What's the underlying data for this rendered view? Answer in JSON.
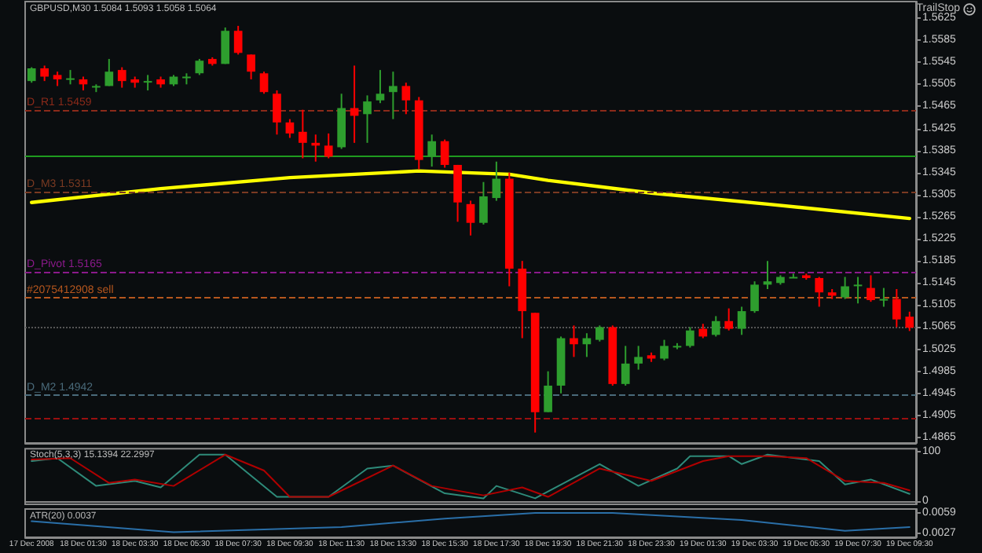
{
  "chart_data": [
    {
      "type": "candlestick",
      "title": "GBPUSD,M30 1.5084 1.5093 1.5058 1.5064",
      "categories": [
        null,
        null,
        null,
        null,
        null,
        null,
        null,
        null,
        null,
        null,
        null,
        null,
        null,
        null,
        null,
        null,
        null,
        null,
        null,
        null,
        null,
        null,
        null,
        null,
        null,
        null,
        null,
        null,
        null,
        null,
        null,
        null,
        null,
        null,
        null,
        null,
        null,
        null,
        null,
        null,
        null,
        null,
        null,
        null,
        null,
        null,
        null,
        null,
        null,
        null,
        null,
        null,
        null,
        null,
        null,
        null,
        null,
        null,
        null,
        null,
        null,
        null,
        null,
        null,
        null,
        null,
        null,
        null,
        null
      ],
      "ohlc": [
        [
          1.5511,
          1.5536,
          1.5508,
          1.5534
        ],
        [
          1.5534,
          1.5539,
          1.5511,
          1.5519
        ],
        [
          1.5522,
          1.5528,
          1.5502,
          1.5514
        ],
        [
          1.5516,
          1.5531,
          1.5505,
          1.5516
        ],
        [
          1.5514,
          1.5519,
          1.5494,
          1.5505
        ],
        [
          1.5502,
          1.5505,
          1.5491,
          1.5502
        ],
        [
          1.5502,
          1.5551,
          1.5502,
          1.5528
        ],
        [
          1.5531,
          1.5536,
          1.5499,
          1.5511
        ],
        [
          1.5514,
          1.5519,
          1.5499,
          1.5508
        ],
        [
          1.5511,
          1.5522,
          1.5494,
          1.5511
        ],
        [
          1.5514,
          1.5519,
          1.5499,
          1.5505
        ],
        [
          1.5505,
          1.5522,
          1.5502,
          1.5519
        ],
        [
          1.5519,
          1.5525,
          1.5505,
          1.5519
        ],
        [
          1.5525,
          1.5551,
          1.5522,
          1.5548
        ],
        [
          1.5551,
          1.5554,
          1.5539,
          1.5542
        ],
        [
          1.5542,
          1.5608,
          1.5542,
          1.5602
        ],
        [
          1.5602,
          1.5611,
          1.5559,
          1.5562
        ],
        [
          1.5559,
          1.5559,
          1.5514,
          1.5528
        ],
        [
          1.5525,
          1.5528,
          1.5488,
          1.5491
        ],
        [
          1.5488,
          1.5494,
          1.5414,
          1.5436
        ],
        [
          1.5436,
          1.5442,
          1.5408,
          1.5416
        ],
        [
          1.5419,
          1.5459,
          1.5371,
          1.5399
        ],
        [
          1.5399,
          1.5414,
          1.5365,
          1.5394
        ],
        [
          1.5394,
          1.5416,
          1.5371,
          1.5374
        ],
        [
          1.5391,
          1.5488,
          1.5388,
          1.5462
        ],
        [
          1.5462,
          1.5539,
          1.5399,
          1.5448
        ],
        [
          1.5451,
          1.5485,
          1.5399,
          1.5474
        ],
        [
          1.5476,
          1.5531,
          1.5471,
          1.5488
        ],
        [
          1.5491,
          1.5528,
          1.5442,
          1.5502
        ],
        [
          1.5502,
          1.5508,
          1.5451,
          1.5476
        ],
        [
          1.5476,
          1.5482,
          1.5351,
          1.5368
        ],
        [
          1.5374,
          1.5414,
          1.5356,
          1.5402
        ],
        [
          1.5402,
          1.5405,
          1.5354,
          1.5359
        ],
        [
          1.5359,
          1.5359,
          1.5256,
          1.5291
        ],
        [
          1.5288,
          1.5294,
          1.5231,
          1.5254
        ],
        [
          1.5254,
          1.5328,
          1.5251,
          1.5302
        ],
        [
          1.5299,
          1.5365,
          1.5294,
          1.5334
        ],
        [
          1.5334,
          1.5345,
          1.5139,
          1.5171
        ],
        [
          1.5171,
          1.5185,
          1.5045,
          1.5094
        ],
        [
          1.5091,
          1.5091,
          1.4874,
          1.4911
        ],
        [
          1.4911,
          1.4985,
          1.4911,
          1.4959
        ],
        [
          1.4959,
          1.5048,
          1.4945,
          1.5045
        ],
        [
          1.5045,
          1.5068,
          1.5011,
          1.5034
        ],
        [
          1.5034,
          1.5054,
          1.5011,
          1.5045
        ],
        [
          1.5042,
          1.5068,
          1.5039,
          1.5065
        ],
        [
          1.5065,
          1.5068,
          1.4959,
          1.4962
        ],
        [
          1.4962,
          1.5031,
          1.4959,
          1.4999
        ],
        [
          1.4999,
          1.5031,
          1.4988,
          1.5011
        ],
        [
          1.5014,
          1.5019,
          1.5002,
          1.5008
        ],
        [
          1.5008,
          1.5042,
          1.5005,
          1.5031
        ],
        [
          1.5031,
          1.5036,
          1.5025,
          1.5031
        ],
        [
          1.5031,
          1.5065,
          1.5028,
          1.5059
        ],
        [
          1.5062,
          1.5071,
          1.5045,
          1.5048
        ],
        [
          1.5051,
          1.5085,
          1.5048,
          1.5076
        ],
        [
          1.5076,
          1.5099,
          1.5059,
          1.5062
        ],
        [
          1.5062,
          1.5102,
          1.5051,
          1.5094
        ],
        [
          1.5094,
          1.5148,
          1.5091,
          1.5142
        ],
        [
          1.5142,
          1.5185,
          1.5134,
          1.5148
        ],
        [
          1.5145,
          1.5159,
          1.5142,
          1.5156
        ],
        [
          1.5156,
          1.5162,
          1.5154,
          1.5156
        ],
        [
          1.5159,
          1.5162,
          1.5151,
          1.5154
        ],
        [
          1.5154,
          1.5156,
          1.5102,
          1.5128
        ],
        [
          1.5128,
          1.5134,
          1.5116,
          1.5122
        ],
        [
          1.5119,
          1.5156,
          1.5116,
          1.5139
        ],
        [
          1.5142,
          1.5156,
          1.5108,
          1.5142
        ],
        [
          1.5136,
          1.5159,
          1.5111,
          1.5114
        ],
        [
          1.5116,
          1.5136,
          1.5102,
          1.5116
        ],
        [
          1.5116,
          1.5134,
          1.5065,
          1.5079
        ],
        [
          1.5084,
          1.5093,
          1.5058,
          1.5064
        ]
      ],
      "colors": [
        "#2e9e2e",
        "#ff0000",
        "#ff0000",
        "#2e9e2e",
        "#ff0000",
        "#2e9e2e",
        "#2e9e2e",
        "#ff0000",
        "#ff0000",
        "#2e9e2e",
        "#ff0000",
        "#2e9e2e",
        "#2e9e2e",
        "#2e9e2e",
        "#ff0000",
        "#2e9e2e",
        "#ff0000",
        "#ff0000",
        "#ff0000",
        "#ff0000",
        "#ff0000",
        "#ff0000",
        "#ff0000",
        "#ff0000",
        "#2e9e2e",
        "#ff0000",
        "#2e9e2e",
        "#2e9e2e",
        "#2e9e2e",
        "#ff0000",
        "#ff0000",
        "#2e9e2e",
        "#ff0000",
        "#ff0000",
        "#ff0000",
        "#2e9e2e",
        "#2e9e2e",
        "#ff0000",
        "#ff0000",
        "#ff0000",
        "#2e9e2e",
        "#2e9e2e",
        "#ff0000",
        "#2e9e2e",
        "#2e9e2e",
        "#ff0000",
        "#2e9e2e",
        "#2e9e2e",
        "#ff0000",
        "#2e9e2e",
        "#2e9e2e",
        "#2e9e2e",
        "#ff0000",
        "#2e9e2e",
        "#ff0000",
        "#2e9e2e",
        "#2e9e2e",
        "#2e9e2e",
        "#2e9e2e",
        "#2e9e2e",
        "#ff0000",
        "#ff0000",
        "#ff0000",
        "#2e9e2e",
        "#2e9e2e",
        "#ff0000",
        "#2e9e2e",
        "#ff0000",
        "#ff0000"
      ],
      "series": [
        {
          "type": "line",
          "color": "#ffff00",
          "values": [
            1.5291,
            null,
            null,
            null,
            null,
            null,
            null,
            null,
            null,
            null,
            1.5316,
            null,
            null,
            null,
            null,
            null,
            null,
            null,
            null,
            null,
            1.5336,
            null,
            null,
            null,
            null,
            null,
            null,
            null,
            null,
            null,
            1.5348,
            null,
            null,
            null,
            null,
            null,
            null,
            1.5342,
            null,
            null,
            1.5331,
            null,
            null,
            null,
            null,
            null,
            null,
            null,
            1.5308,
            null,
            null,
            null,
            null,
            null,
            null,
            null,
            null,
            1.5288,
            null,
            null,
            null,
            null,
            null,
            null,
            null,
            null,
            null,
            null,
            1.5262
          ]
        }
      ],
      "ylim": [
        1.4855,
        1.5655
      ],
      "yticks": [
        1.4865,
        1.4905,
        1.4945,
        1.4985,
        1.5025,
        1.5065,
        1.5105,
        1.5145,
        1.5185,
        1.5225,
        1.5265,
        1.5305,
        1.5345,
        1.5385,
        1.5425,
        1.5465,
        1.5505,
        1.5545,
        1.5585,
        1.5625
      ],
      "ref_lines": [
        {
          "axis": "y",
          "value": 1.5459,
          "label": "D_R1 1.5459",
          "color": "#8b2a1a",
          "line_style": "dashed"
        },
        {
          "axis": "y",
          "value": 1.5376,
          "color": "#1f9a1f",
          "line_style": "solid"
        },
        {
          "axis": "y",
          "value": 1.5311,
          "label": "D_M3 1.5311",
          "color": "#7a3a22",
          "line_style": "dashed"
        },
        {
          "axis": "y",
          "value": 1.5165,
          "label": "D_Pivot 1.5165",
          "color": "#8b1a8b",
          "line_style": "dashed"
        },
        {
          "axis": "y",
          "value": 1.5119,
          "label": "#2075412908 sell",
          "color": "#b5561e",
          "line_style": "dashed"
        },
        {
          "axis": "y",
          "value": 1.5064,
          "color": "#555555",
          "line_style": "dotted"
        },
        {
          "axis": "y",
          "value": 1.4942,
          "label": "D_M2 1.4942",
          "color": "#4a6a7a",
          "line_style": "dashed"
        },
        {
          "axis": "y",
          "value": 1.4899,
          "color": "#9a1010",
          "line_style": "dashed"
        }
      ],
      "annotations": [
        "TrailStop"
      ],
      "tick_labels": "y"
    },
    {
      "type": "line",
      "title": "Stoch(5,3,3) 15.1394 22.2997",
      "categories": [
        null,
        null,
        null,
        null,
        null,
        null,
        null,
        null,
        null,
        null,
        null,
        null,
        null,
        null,
        null,
        null,
        null,
        null,
        null,
        null,
        null,
        null,
        null,
        null,
        null,
        null,
        null,
        null,
        null,
        null,
        null,
        null,
        null,
        null,
        null,
        null,
        null,
        null,
        null,
        null,
        null,
        null,
        null,
        null,
        null,
        null,
        null,
        null,
        null,
        null,
        null,
        null,
        null,
        null,
        null,
        null,
        null,
        null,
        null,
        null,
        null,
        null,
        null,
        null,
        null,
        null,
        null,
        null,
        null
      ],
      "series": [
        {
          "color": "#2e8b7a",
          "values": [
            81,
            null,
            87,
            null,
            null,
            31,
            null,
            null,
            41,
            null,
            28,
            null,
            null,
            94,
            null,
            94,
            null,
            null,
            null,
            9,
            null,
            null,
            null,
            9,
            null,
            null,
            66,
            null,
            72,
            null,
            null,
            null,
            16,
            null,
            null,
            6,
            31,
            null,
            null,
            6,
            null,
            null,
            null,
            null,
            75,
            null,
            null,
            31,
            null,
            null,
            66,
            91,
            null,
            null,
            91,
            75,
            null,
            94,
            null,
            null,
            null,
            81,
            null,
            34,
            null,
            44,
            null,
            null,
            15
          ]
        },
        {
          "color": "#b00000",
          "values": [
            84,
            null,
            null,
            87,
            null,
            null,
            37,
            null,
            44,
            null,
            null,
            31,
            null,
            null,
            null,
            94,
            null,
            null,
            62,
            null,
            9,
            null,
            null,
            9,
            null,
            null,
            null,
            null,
            72,
            null,
            null,
            31,
            null,
            null,
            null,
            12,
            null,
            null,
            28,
            null,
            9,
            null,
            null,
            null,
            66,
            null,
            null,
            null,
            41,
            null,
            null,
            null,
            81,
            null,
            91,
            null,
            null,
            91,
            null,
            null,
            87,
            null,
            null,
            41,
            null,
            null,
            37,
            null,
            22
          ]
        }
      ],
      "ylim": [
        -6,
        106
      ],
      "yticks": [
        0,
        100
      ],
      "tick_labels": "y"
    },
    {
      "type": "line",
      "title": "ATR(20) 0.0037",
      "categories": [
        "17 Dec 2008",
        null,
        null,
        null,
        "18 Dec 01:30",
        null,
        null,
        null,
        "18 Dec 03:30",
        null,
        null,
        null,
        "18 Dec 05:30",
        null,
        null,
        null,
        "18 Dec 07:30",
        null,
        null,
        null,
        "18 Dec 09:30",
        null,
        null,
        null,
        "18 Dec 11:30",
        null,
        null,
        null,
        "18 Dec 13:30",
        null,
        null,
        null,
        "18 Dec 15:30",
        null,
        null,
        null,
        "18 Dec 17:30",
        null,
        null,
        null,
        "18 Dec 19:30",
        null,
        null,
        null,
        "18 Dec 21:30",
        null,
        null,
        null,
        "18 Dec 23:30",
        null,
        null,
        null,
        "19 Dec 01:30",
        null,
        null,
        null,
        "19 Dec 03:30",
        null,
        null,
        null,
        "19 Dec 05:30",
        null,
        null,
        null,
        "19 Dec 07:30",
        null,
        null,
        null,
        "19 Dec 09:30"
      ],
      "series": [
        {
          "color": "#2a6fa8",
          "values": [
            0.0046,
            null,
            null,
            null,
            null,
            null,
            null,
            null,
            null,
            null,
            null,
            0.0029,
            null,
            null,
            null,
            null,
            null,
            null,
            null,
            null,
            null,
            null,
            null,
            null,
            0.0037,
            null,
            null,
            null,
            null,
            null,
            null,
            null,
            0.005,
            null,
            null,
            null,
            null,
            null,
            null,
            0.0059,
            null,
            null,
            null,
            null,
            null,
            0.0059,
            null,
            null,
            null,
            null,
            null,
            null,
            null,
            null,
            null,
            0.0048,
            null,
            null,
            null,
            null,
            null,
            null,
            null,
            0.0031,
            null,
            null,
            null,
            null,
            0.0037
          ]
        }
      ],
      "ylim": [
        0.0021,
        0.0065
      ],
      "yticks": [
        0.0027,
        0.0059
      ]
    }
  ]
}
